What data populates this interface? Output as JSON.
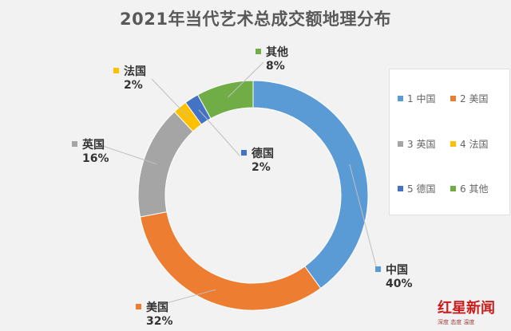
{
  "chart_data": {
    "type": "donut",
    "title": "2021年当代艺术总成交额地理分布",
    "categories": [
      "中国",
      "美国",
      "英国",
      "法国",
      "德国",
      "其他"
    ],
    "values": [
      40,
      32,
      16,
      2,
      2,
      8
    ],
    "value_suffix": "%",
    "colors": [
      "#5b9bd5",
      "#ed7d31",
      "#a5a5a5",
      "#ffc000",
      "#4472c4",
      "#70ad47"
    ],
    "legend": {
      "placement": "right",
      "entries": [
        "1 中国",
        "2 美国",
        "3 英国",
        "4 法国",
        "5 德国",
        "6 其他"
      ]
    },
    "data_labels": [
      {
        "name": "中国",
        "value": "40%"
      },
      {
        "name": "美国",
        "value": "32%"
      },
      {
        "name": "英国",
        "value": "16%"
      },
      {
        "name": "法国",
        "value": "2%"
      },
      {
        "name": "德国",
        "value": "2%"
      },
      {
        "name": "其他",
        "value": "8%"
      }
    ]
  },
  "watermark": {
    "main": "红星新闻",
    "sub": "深度 态度 温度"
  }
}
